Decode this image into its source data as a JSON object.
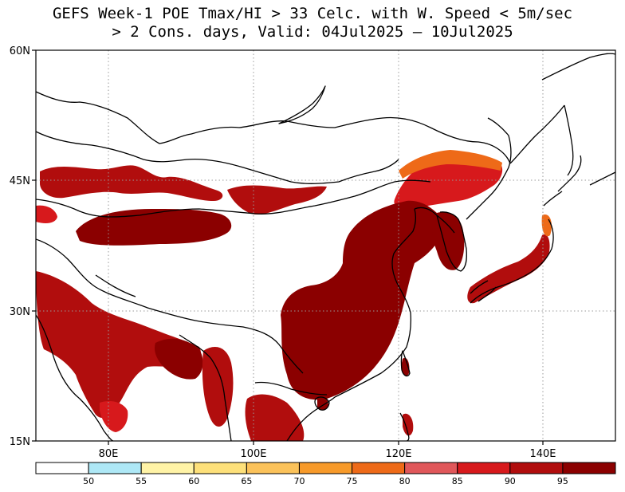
{
  "title": {
    "line1": "GEFS Week-1 POE Tmax/HI > 33 Celc. with W. Speed < 5m/sec",
    "line2": "> 2 Cons. days, Valid: 04Jul2025 – 10Jul2025"
  },
  "map": {
    "lat_ticks": [
      "60N",
      "45N",
      "30N",
      "15N"
    ],
    "lon_ticks": [
      "80E",
      "100E",
      "120E",
      "140E"
    ],
    "lon_range": [
      70,
      150
    ],
    "lat_range": [
      15,
      60
    ],
    "grid": "dotted",
    "coastline_color": "#000000"
  },
  "colorbar": {
    "labels": [
      "50",
      "55",
      "60",
      "65",
      "70",
      "75",
      "80",
      "85",
      "90",
      "95"
    ],
    "colors": [
      "#ffffff",
      "#aee8f6",
      "#fff3a6",
      "#fde07a",
      "#fbc25a",
      "#f79a2a",
      "#ee6a18",
      "#e0575a",
      "#d7191c",
      "#b10d0d",
      "#8b0000"
    ]
  }
}
